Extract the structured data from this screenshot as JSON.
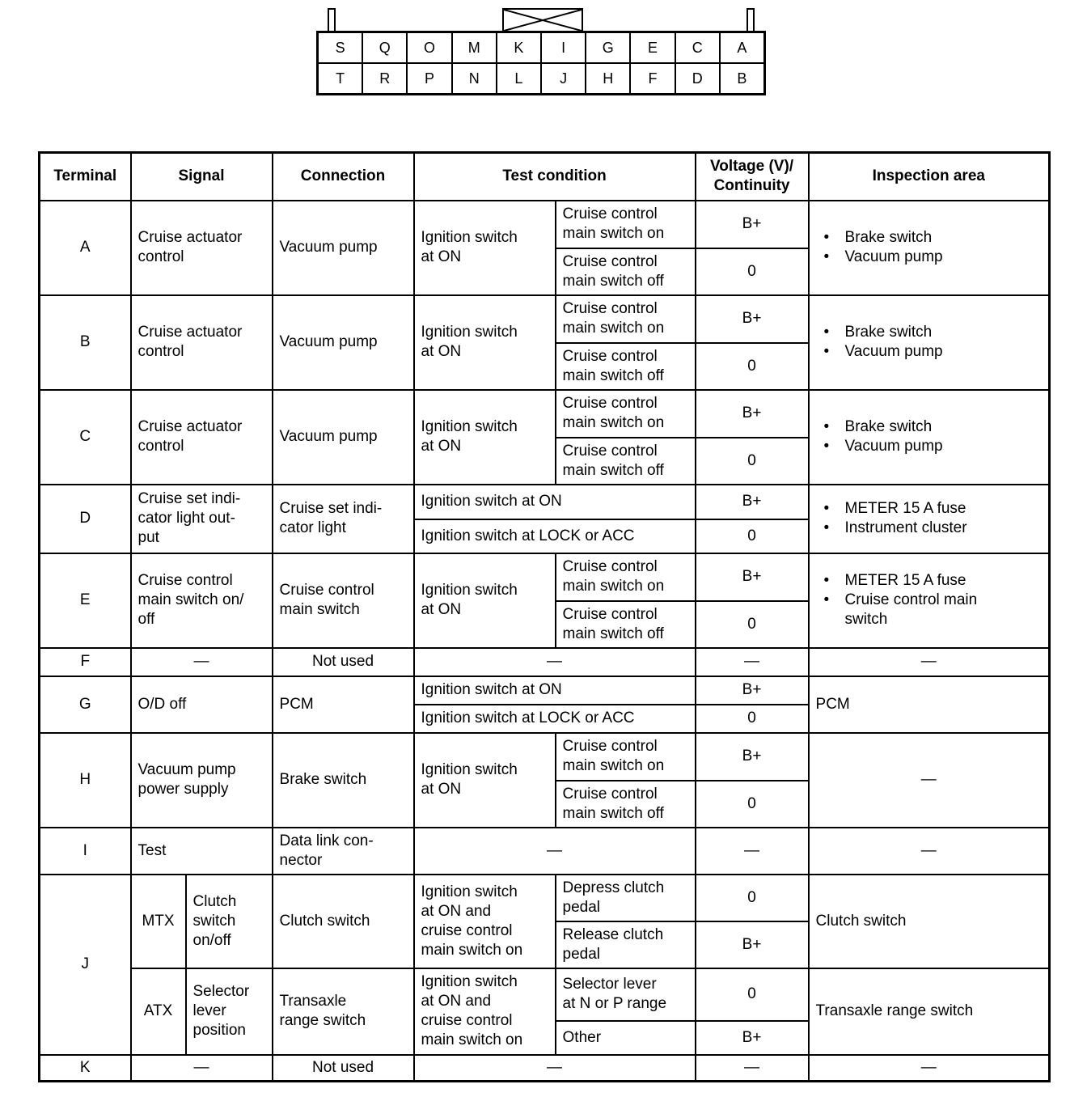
{
  "connector": {
    "top_row": [
      "S",
      "Q",
      "O",
      "M",
      "K",
      "I",
      "G",
      "E",
      "C",
      "A"
    ],
    "bottom_row": [
      "T",
      "R",
      "P",
      "N",
      "L",
      "J",
      "H",
      "F",
      "D",
      "B"
    ]
  },
  "table": {
    "headers": [
      "Terminal",
      "Signal",
      "Connection",
      "Test condition",
      "Voltage (V)/\nContinuity",
      "Inspection area"
    ],
    "terminals": [
      {
        "id": "A",
        "groups": [
          {
            "signal": "Cruise actuator\ncontrol",
            "connection": "Vacuum pump",
            "condition": "Ignition switch\nat ON",
            "checks": [
              {
                "condition": "Cruise control\nmain switch on",
                "value": "B+"
              },
              {
                "condition": "Cruise control\nmain switch off",
                "value": "0"
              }
            ],
            "inspection": [
              "Brake switch",
              "Vacuum pump"
            ]
          }
        ]
      },
      {
        "id": "B",
        "groups": [
          {
            "signal": "Cruise actuator\ncontrol",
            "connection": "Vacuum pump",
            "condition": "Ignition switch\nat ON",
            "checks": [
              {
                "condition": "Cruise control\nmain switch on",
                "value": "B+"
              },
              {
                "condition": "Cruise control\nmain switch off",
                "value": "0"
              }
            ],
            "inspection": [
              "Brake switch",
              "Vacuum pump"
            ]
          }
        ]
      },
      {
        "id": "C",
        "groups": [
          {
            "signal": "Cruise actuator\ncontrol",
            "connection": "Vacuum pump",
            "condition": "Ignition switch\nat ON",
            "checks": [
              {
                "condition": "Cruise control\nmain switch on",
                "value": "B+"
              },
              {
                "condition": "Cruise control\nmain switch off",
                "value": "0"
              }
            ],
            "inspection": [
              "Brake switch",
              "Vacuum pump"
            ]
          }
        ]
      },
      {
        "id": "D",
        "groups": [
          {
            "signal": "Cruise set indi-\ncator light out-\nput",
            "connection": "Cruise set indi-\ncator light",
            "checks": [
              {
                "condition": "Ignition switch at ON",
                "value": "B+"
              },
              {
                "condition": "Ignition switch at LOCK or ACC",
                "value": "0"
              }
            ],
            "inspection": [
              "METER 15 A fuse",
              "Instrument cluster"
            ]
          }
        ]
      },
      {
        "id": "E",
        "groups": [
          {
            "signal": "Cruise control\nmain switch on/\noff",
            "connection": "Cruise control\nmain switch",
            "condition": "Ignition switch\nat ON",
            "checks": [
              {
                "condition": "Cruise control\nmain switch on",
                "value": "B+"
              },
              {
                "condition": "Cruise control\nmain switch off",
                "value": "0"
              }
            ],
            "inspection": [
              "METER 15 A fuse",
              "Cruise control main\nswitch"
            ]
          }
        ]
      },
      {
        "id": "F",
        "groups": [
          {
            "signal": "—",
            "signal_center": true,
            "connection": "Not used",
            "connection_center": true,
            "checks": [
              {
                "condition": "—",
                "center": true,
                "value": "—"
              }
            ],
            "inspection": "—",
            "inspection_center": true
          }
        ]
      },
      {
        "id": "G",
        "groups": [
          {
            "signal": "O/D off",
            "connection": "PCM",
            "checks": [
              {
                "condition": "Ignition switch at ON",
                "value": "B+"
              },
              {
                "condition": "Ignition switch at LOCK or ACC",
                "value": "0"
              }
            ],
            "inspection": "PCM"
          }
        ]
      },
      {
        "id": "H",
        "groups": [
          {
            "signal": "Vacuum pump\npower supply",
            "connection": "Brake switch",
            "condition": "Ignition switch\nat ON",
            "checks": [
              {
                "condition": "Cruise control\nmain switch on",
                "value": "B+"
              },
              {
                "condition": "Cruise control\nmain switch off",
                "value": "0"
              }
            ],
            "inspection": "—",
            "inspection_center": true
          }
        ]
      },
      {
        "id": "I",
        "groups": [
          {
            "signal": "Test",
            "connection": "Data link con-\nnector",
            "checks": [
              {
                "condition": "—",
                "center": true,
                "value": "—"
              }
            ],
            "inspection": "—",
            "inspection_center": true
          }
        ]
      },
      {
        "id": "J",
        "groups": [
          {
            "type": "MTX",
            "signal": "Clutch\nswitch\non/off",
            "connection": "Clutch switch",
            "condition": "Ignition switch\nat ON and\ncruise control\nmain switch on",
            "checks": [
              {
                "condition": "Depress clutch\npedal",
                "value": "0"
              },
              {
                "condition": "Release clutch\npedal",
                "value": "B+"
              }
            ],
            "inspection": "Clutch switch"
          },
          {
            "type": "ATX",
            "signal": "Selector\nlever\nposition",
            "connection": "Transaxle\nrange switch",
            "condition": "Ignition switch\nat ON and\ncruise control\nmain switch on",
            "checks": [
              {
                "condition": "Selector lever\nat N or P range",
                "value": "0"
              },
              {
                "condition": "Other",
                "value": "B+"
              }
            ],
            "inspection": "Transaxle range switch"
          }
        ]
      },
      {
        "id": "K",
        "groups": [
          {
            "signal": "—",
            "signal_center": true,
            "connection": "Not used",
            "connection_center": true,
            "checks": [
              {
                "condition": "—",
                "center": true,
                "value": "—"
              }
            ],
            "inspection": "—",
            "inspection_center": true
          }
        ]
      }
    ]
  }
}
